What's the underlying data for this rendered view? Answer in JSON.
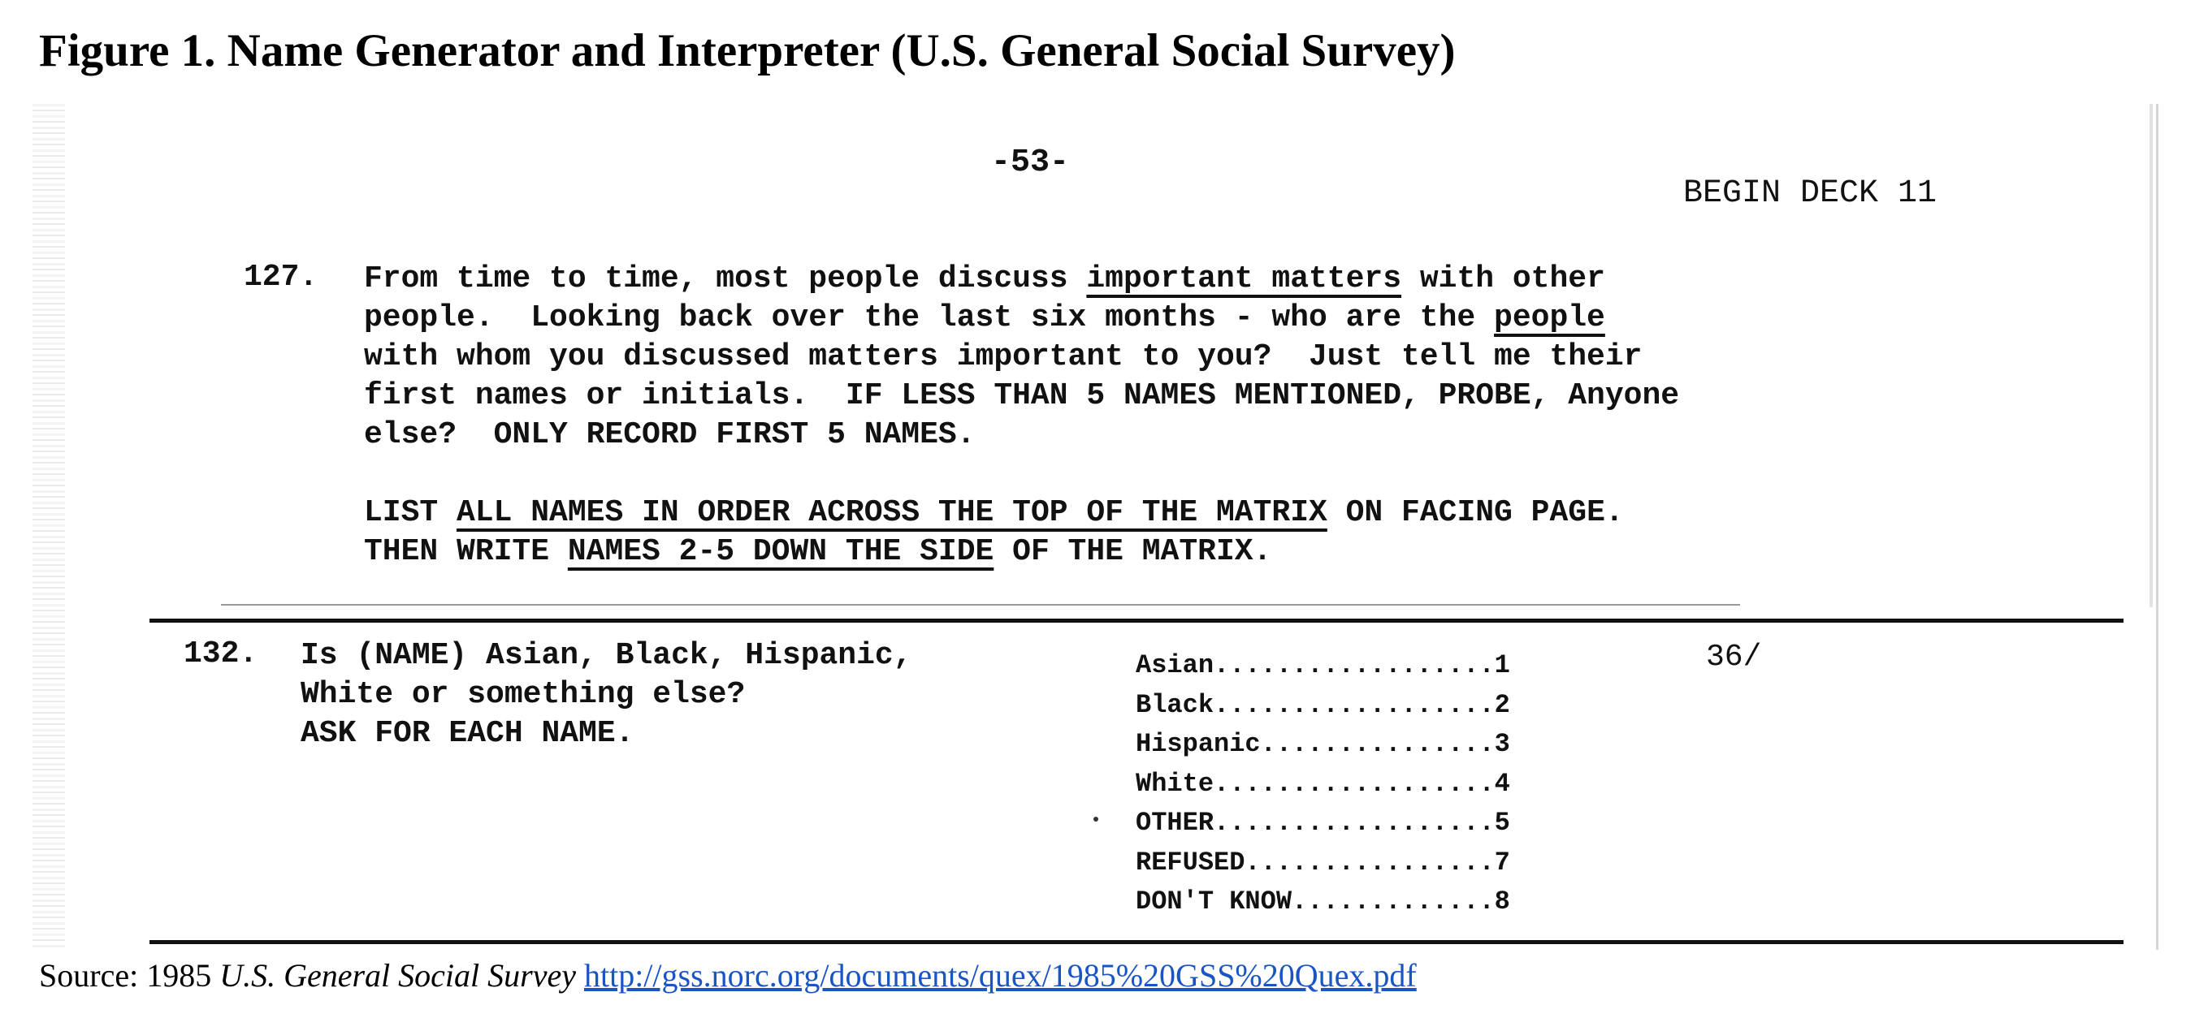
{
  "figure_title": "Figure 1. Name Generator and Interpreter (U.S. General Social Survey)",
  "scan": {
    "page_number": "-53-",
    "deck": "BEGIN DECK 11",
    "q127": {
      "number": "127.",
      "line1_a": "From time to time, most people discuss ",
      "line1_u": "important matters",
      "line1_b": " with other",
      "line2_a": "people.  Looking back over the last six months - who are the ",
      "line2_u": "people",
      "line3": "with whom you discussed matters important to you?  Just tell me their",
      "line4": "first names or initials.  IF LESS THAN 5 NAMES MENTIONED, PROBE, Anyone",
      "line5": "else?  ONLY RECORD FIRST 5 NAMES.",
      "list1_a": "LIST ",
      "list1_u": "ALL NAMES IN ORDER ACROSS THE TOP OF THE MATRIX",
      "list1_b": " ON FACING PAGE.",
      "list2_a": "THEN WRITE ",
      "list2_u": "NAMES 2-5 DOWN THE SIDE",
      "list2_b": " OF THE MATRIX."
    },
    "q132": {
      "number": "132.",
      "line1": "Is (NAME) Asian, Black, Hispanic,",
      "line2": "White or something else?",
      "line3": "ASK FOR EACH NAME.",
      "codes": [
        "Asian..................1",
        "Black..................2",
        "Hispanic...............3",
        "White..................4",
        "OTHER..................5",
        "REFUSED................7",
        "DON'T KNOW.............8"
      ],
      "column": "36/"
    }
  },
  "source": {
    "prefix": "Source: 1985 ",
    "italic": "U.S. General Social Survey",
    "link": "http://gss.norc.org/documents/quex/1985%20GSS%20Quex.pdf"
  }
}
